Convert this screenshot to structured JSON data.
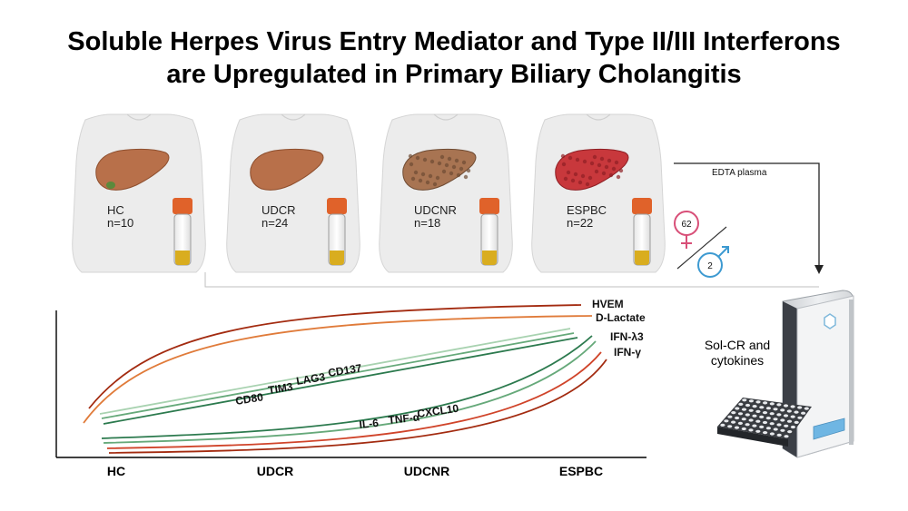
{
  "title": {
    "line1": "Soluble Herpes Virus Entry Mediator and Type II/III Interferons",
    "line2": "are Upregulated in Primary Biliary Cholangitis"
  },
  "groups": [
    {
      "name": "HC",
      "n": "n=10",
      "liver_color": "#b8704a",
      "liver_dark": "#8e4f2e"
    },
    {
      "name": "UDCR",
      "n": "n=24",
      "liver_color": "#b8704a",
      "liver_dark": "#8e4f2e"
    },
    {
      "name": "UDCNR",
      "n": "n=18",
      "liver_color": "#a87452",
      "liver_dark": "#6e4b33"
    },
    {
      "name": "ESPBC",
      "n": "n=22",
      "liver_color": "#c8383c",
      "liver_dark": "#8e1f24"
    }
  ],
  "sex": {
    "female": "62",
    "male": "2"
  },
  "sample_label": "EDTA plasma",
  "machine_label": [
    "Sol-CR and",
    "cytokines"
  ],
  "axis_categories": [
    "HC",
    "UDCR",
    "UDCNR",
    "ESPBC"
  ],
  "curve_labels": [
    "HVEM",
    "D-Lactate",
    "IFN-λ3",
    "IFN-γ",
    "CD80",
    "TIM3",
    "LAG3",
    "CD137",
    "IL-6",
    "TNF-α",
    "CXCL10"
  ],
  "colors": {
    "orange": "#e07b3a",
    "red_dark": "#a32b10",
    "red": "#d0442a",
    "green_dark": "#2c7a4e",
    "green_mid": "#66a97a",
    "green_light": "#a8d2b0",
    "female": "#d84f78",
    "male": "#3d9ad1"
  }
}
